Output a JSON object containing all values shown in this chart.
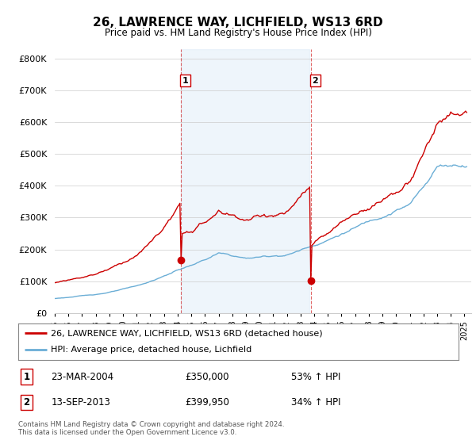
{
  "title": "26, LAWRENCE WAY, LICHFIELD, WS13 6RD",
  "subtitle": "Price paid vs. HM Land Registry's House Price Index (HPI)",
  "legend_line1": "26, LAWRENCE WAY, LICHFIELD, WS13 6RD (detached house)",
  "legend_line2": "HPI: Average price, detached house, Lichfield",
  "sale1_date": "23-MAR-2004",
  "sale1_price": "£350,000",
  "sale1_hpi": "53% ↑ HPI",
  "sale1_year": 2004.22,
  "sale1_value": 350000,
  "sale2_date": "13-SEP-2013",
  "sale2_price": "£399,950",
  "sale2_hpi": "34% ↑ HPI",
  "sale2_year": 2013.71,
  "sale2_value": 399950,
  "hpi_color": "#6baed6",
  "price_color": "#cc0000",
  "dashed_color": "#cc0000",
  "bg_color": "#ffffff",
  "grid_color": "#cccccc",
  "hpi_fill_color": "#daeaf7",
  "ylim_min": 0,
  "ylim_max": 830000,
  "footnote": "Contains HM Land Registry data © Crown copyright and database right 2024.\nThis data is licensed under the Open Government Licence v3.0."
}
